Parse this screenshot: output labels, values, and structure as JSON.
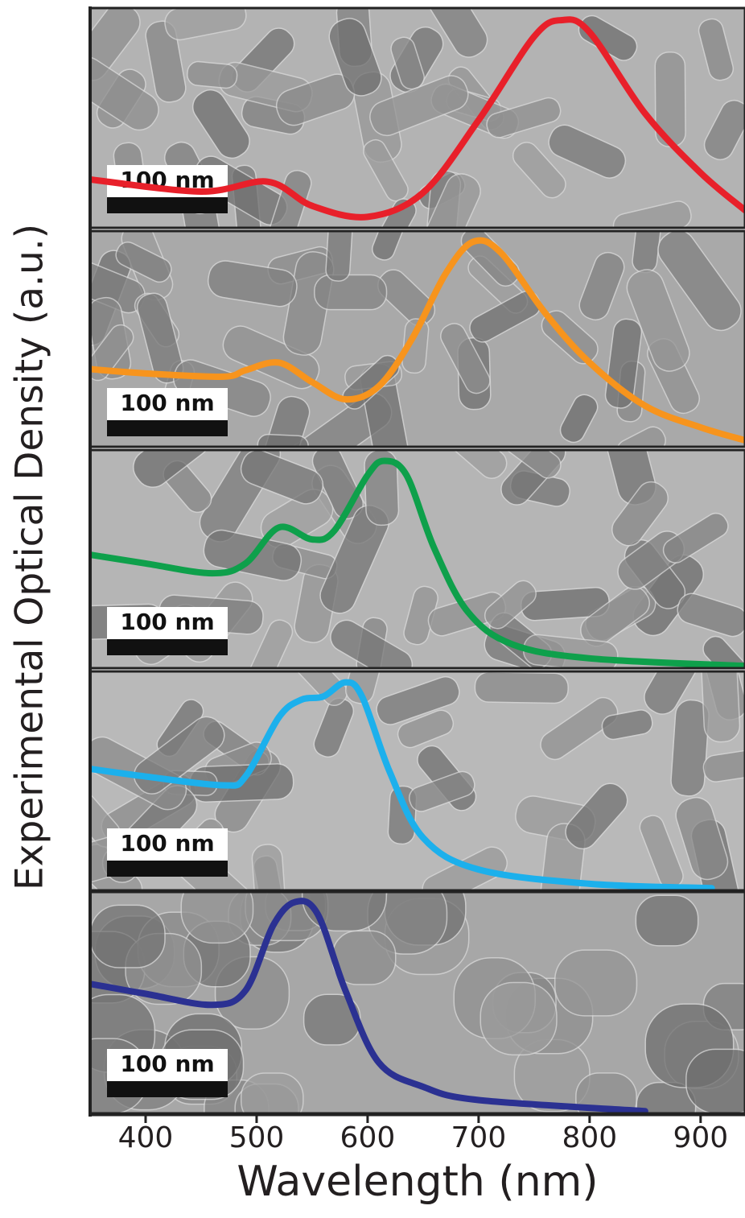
{
  "chart_data": [
    {
      "type": "line",
      "ylabel": "Experimental Optical Density (a.u.)",
      "scale_bar": "100 nm",
      "color": "#e8202a",
      "xlim": [
        350,
        940
      ],
      "ylim": [
        0,
        1
      ],
      "x": [
        350,
        450,
        510,
        550,
        600,
        650,
        700,
        750,
        775,
        800,
        850,
        900,
        940
      ],
      "values": [
        0.22,
        0.165,
        0.21,
        0.1,
        0.05,
        0.16,
        0.49,
        0.87,
        0.945,
        0.89,
        0.52,
        0.25,
        0.08
      ]
    },
    {
      "type": "line",
      "scale_bar": "100 nm",
      "color": "#f7941d",
      "xlim": [
        350,
        940
      ],
      "ylim": [
        0,
        1
      ],
      "x": [
        350,
        400,
        470,
        490,
        520,
        550,
        580,
        610,
        640,
        670,
        695,
        720,
        760,
        800,
        850,
        900,
        940
      ],
      "values": [
        0.36,
        0.34,
        0.325,
        0.355,
        0.39,
        0.3,
        0.22,
        0.28,
        0.5,
        0.8,
        0.95,
        0.9,
        0.62,
        0.39,
        0.19,
        0.09,
        0.03
      ]
    },
    {
      "type": "line",
      "scale_bar": "100 nm",
      "color": "#0ea04b",
      "xlim": [
        350,
        940
      ],
      "ylim": [
        0,
        1
      ],
      "x": [
        350,
        400,
        460,
        490,
        520,
        550,
        570,
        600,
        615,
        635,
        660,
        690,
        730,
        800,
        940
      ],
      "values": [
        0.52,
        0.48,
        0.435,
        0.48,
        0.645,
        0.59,
        0.63,
        0.885,
        0.95,
        0.885,
        0.55,
        0.26,
        0.11,
        0.045,
        0.01
      ]
    },
    {
      "type": "line",
      "scale_bar": "100 nm",
      "color": "#1cb0ec",
      "xlim": [
        350,
        940
      ],
      "ylim": [
        0,
        1
      ],
      "x": [
        350,
        400,
        470,
        490,
        520,
        540,
        560,
        580,
        595,
        620,
        650,
        700,
        800,
        910
      ],
      "values": [
        0.555,
        0.52,
        0.48,
        0.52,
        0.79,
        0.87,
        0.885,
        0.95,
        0.885,
        0.54,
        0.24,
        0.095,
        0.03,
        0.01
      ]
    },
    {
      "type": "line",
      "scale_bar": "100 nm",
      "color": "#2b3192",
      "xlim": [
        350,
        940
      ],
      "ylim": [
        0,
        1
      ],
      "xlabel": "Wavelength (nm)",
      "xticks": [
        400,
        500,
        600,
        700,
        800,
        900
      ],
      "x": [
        350,
        400,
        460,
        490,
        515,
        535,
        555,
        580,
        610,
        650,
        700,
        850
      ],
      "values": [
        0.585,
        0.54,
        0.49,
        0.555,
        0.85,
        0.955,
        0.9,
        0.555,
        0.23,
        0.12,
        0.06,
        0.01
      ]
    }
  ]
}
